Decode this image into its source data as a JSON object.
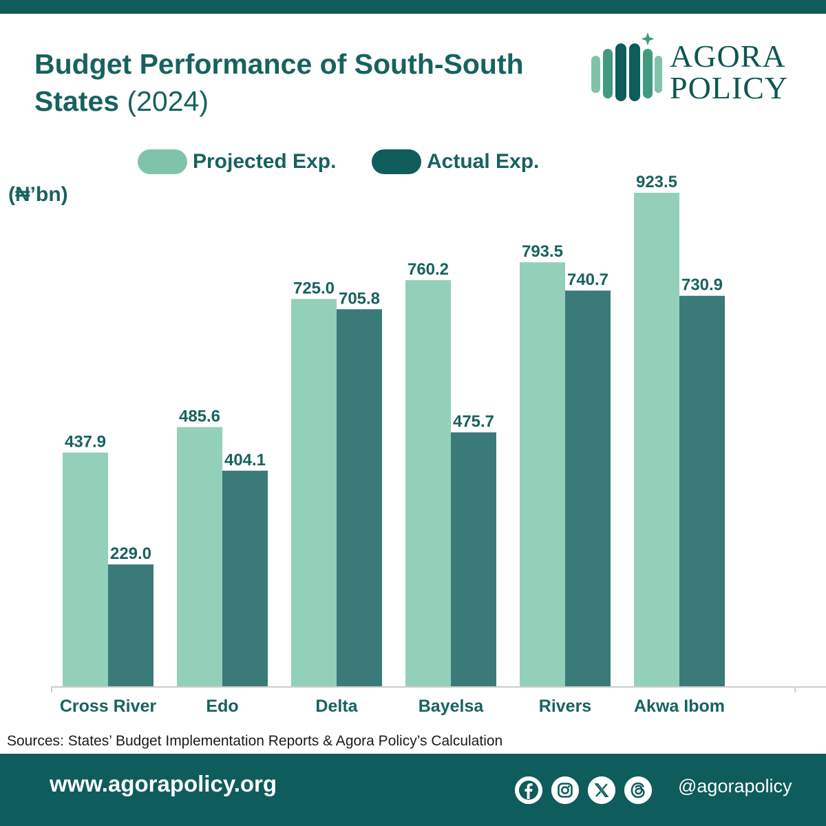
{
  "header": {
    "title_main": "Budget Performance of  South-South States",
    "title_year": "(2024)"
  },
  "logo": {
    "line1": "AGORA",
    "line2": "POLICY"
  },
  "legend": {
    "projected": "Projected Exp.",
    "actual": "Actual Exp."
  },
  "unit_label": "(₦’bn)",
  "colors": {
    "projected": "#93d0ba",
    "actual": "#3a7b79",
    "label": "#17625f",
    "brand": "#0e5c5b"
  },
  "chart_data": {
    "type": "bar",
    "title": "Budget Performance of  South-South States (2024)",
    "ylabel": "(₦’bn)",
    "xlabel": "",
    "categories": [
      "Cross River",
      "Edo",
      "Delta",
      "Bayelsa",
      "Rivers",
      "Akwa Ibom"
    ],
    "series": [
      {
        "name": "Projected Exp.",
        "values": [
          437.9,
          485.6,
          725.0,
          760.2,
          793.5,
          923.5
        ]
      },
      {
        "name": "Actual Exp.",
        "values": [
          229.0,
          404.1,
          705.8,
          475.7,
          740.7,
          730.9
        ]
      }
    ],
    "ylim": [
      0,
      923.5
    ],
    "grid": false,
    "legend_position": "top"
  },
  "source_note": "Sources: States’ Budget Implementation Reports & Agora Policy’s Calculation",
  "footer": {
    "website": "www.agorapolicy.org",
    "handle": "@agorapolicy",
    "social_icons": [
      "facebook-icon",
      "instagram-icon",
      "x-icon",
      "threads-icon"
    ]
  }
}
